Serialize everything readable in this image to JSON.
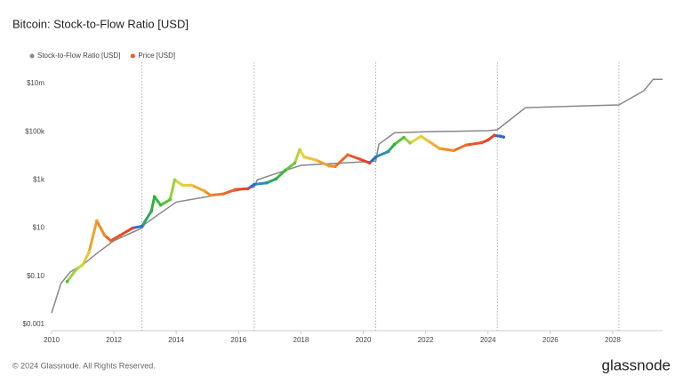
{
  "chart_data": {
    "type": "line",
    "title": "Bitcoin: Stock-to-Flow Ratio [USD]",
    "log_y": true,
    "xlim": [
      2010,
      2029.6
    ],
    "xticks": [
      2010,
      2012,
      2014,
      2016,
      2018,
      2020,
      2022,
      2024,
      2026,
      2028
    ],
    "ylim": [
      0.001,
      50000000
    ],
    "yticks": [
      {
        "value": 0.001,
        "label": "$0.001"
      },
      {
        "value": 0.1,
        "label": "$0.10"
      },
      {
        "value": 10,
        "label": "$10"
      },
      {
        "value": 1000,
        "label": "$1k"
      },
      {
        "value": 100000,
        "label": "$100k"
      },
      {
        "value": 10000000,
        "label": "$10m"
      }
    ],
    "vlines": [
      2012.9,
      2016.5,
      2020.4,
      2024.3,
      2028.2
    ],
    "series": [
      {
        "name": "Stock-to-Flow Ratio [USD]",
        "color": "#888888",
        "x": [
          2010.0,
          2010.3,
          2010.6,
          2011.0,
          2011.5,
          2012.0,
          2012.9,
          2013.0,
          2014.0,
          2015.0,
          2016.5,
          2016.6,
          2017.0,
          2018.0,
          2020.4,
          2020.5,
          2021.0,
          2022.0,
          2024.0,
          2024.3,
          2025.2,
          2028.2,
          2029.0,
          2029.3,
          2029.6
        ],
        "values": [
          0.003,
          0.05,
          0.15,
          0.3,
          1,
          3,
          10,
          15,
          120,
          200,
          500,
          1000,
          1500,
          4000,
          6000,
          30000,
          90000,
          100000,
          110000,
          120000,
          1000000,
          1300000,
          5000000,
          15000000,
          15000000
        ]
      },
      {
        "name": "Price [USD]",
        "color": "#f05a28",
        "x": [
          2010.5,
          2010.8,
          2011.0,
          2011.2,
          2011.45,
          2011.7,
          2011.9,
          2012.2,
          2012.6,
          2012.9,
          2013.2,
          2013.3,
          2013.5,
          2013.8,
          2013.95,
          2014.2,
          2014.5,
          2014.9,
          2015.1,
          2015.5,
          2015.9,
          2016.3,
          2016.5,
          2016.9,
          2017.2,
          2017.5,
          2017.8,
          2017.96,
          2018.1,
          2018.5,
          2018.9,
          2019.1,
          2019.5,
          2019.9,
          2020.2,
          2020.4,
          2020.8,
          2021.0,
          2021.3,
          2021.5,
          2021.85,
          2022.1,
          2022.45,
          2022.9,
          2023.3,
          2023.8,
          2024.0,
          2024.2,
          2024.4,
          2024.5
        ],
        "values": [
          0.06,
          0.2,
          0.3,
          1,
          20,
          5,
          3,
          5,
          10,
          12,
          50,
          200,
          90,
          150,
          1000,
          600,
          600,
          350,
          230,
          260,
          400,
          430,
          650,
          750,
          1100,
          2500,
          5000,
          18000,
          9000,
          6500,
          3800,
          3600,
          11000,
          7200,
          5000,
          9000,
          15000,
          30000,
          58000,
          34000,
          64000,
          40000,
          20000,
          16500,
          28000,
          35000,
          45000,
          70000,
          65000,
          60000
        ],
        "colors": [
          "#4cbf3a",
          "#9fd13a",
          "#c8d83a",
          "#e8c83a",
          "#f0a030",
          "#f08a2a",
          "#e8662a",
          "#e8552a",
          "#e8402a",
          "#2f6bd0",
          "#2aa860",
          "#30b040",
          "#3ab838",
          "#58c238",
          "#9ad03a",
          "#d4d83a",
          "#f0c83a",
          "#f0a830",
          "#f08c2a",
          "#f07a2a",
          "#ec602a",
          "#e8452a",
          "#2f6bd0",
          "#2a8ec0",
          "#2aa860",
          "#3ab838",
          "#6cc838",
          "#b8d43a",
          "#e6d23a",
          "#f0c03a",
          "#f0a030",
          "#f08a2a",
          "#ec6a2a",
          "#e8552a",
          "#e8402a",
          "#2f6bd0",
          "#2a90b8",
          "#30b040",
          "#50c038",
          "#98d03a",
          "#e0d43a",
          "#f0c23a",
          "#f0a830",
          "#f08c2a",
          "#ec702a",
          "#e8552a",
          "#e8452a",
          "#e8402a",
          "#2f6bd0",
          "#3a60d0"
        ]
      }
    ]
  },
  "footer": {
    "copyright": "© 2024 Glassnode. All Rights Reserved.",
    "brand": "glassnode"
  }
}
